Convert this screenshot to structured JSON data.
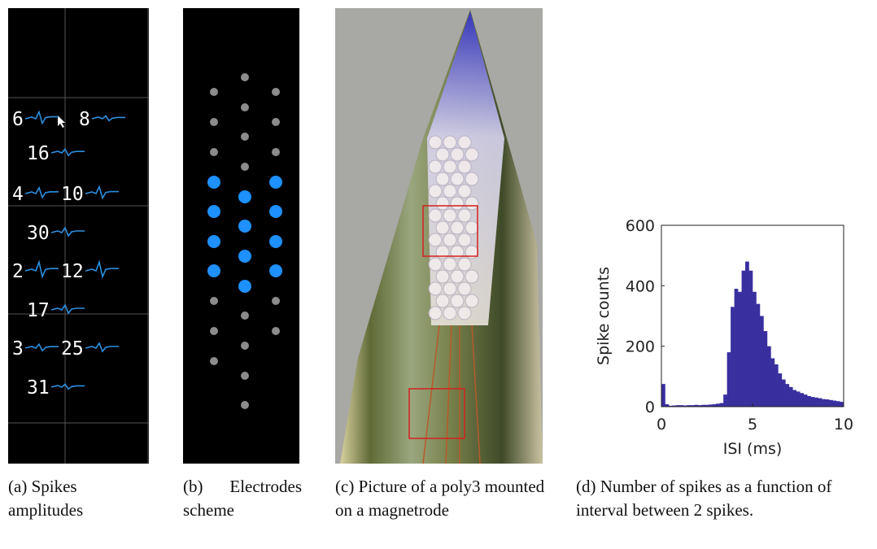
{
  "panel_a": {
    "labels": [
      "6",
      "8",
      "16",
      "4",
      "10",
      "30",
      "2",
      "12",
      "17",
      "3",
      "25",
      "31"
    ]
  },
  "captions": [
    {
      "label": "(a)",
      "text": "Spikes amplitudes"
    },
    {
      "label": "(b)",
      "text": "Electrodes scheme"
    },
    {
      "label": "(c)",
      "text": "Picture of a poly3 mounted on a magnetrode"
    },
    {
      "label": "(d)",
      "text": "Number of spikes as a function of interval between 2 spikes."
    }
  ],
  "chart_data": {
    "type": "histogram",
    "xlabel": "ISI (ms)",
    "ylabel": "Spike counts",
    "color": "#3a2f9f",
    "bins": [
      0,
      0.2,
      0.4,
      0.6,
      0.8,
      1,
      1.2,
      1.4,
      1.6,
      1.8,
      2,
      2.2,
      2.4,
      2.6,
      2.8,
      3,
      3.2,
      3.4,
      3.6,
      3.8,
      4,
      4.2,
      4.4,
      4.6,
      4.8,
      5,
      5.2,
      5.4,
      5.6,
      5.8,
      6,
      6.2,
      6.4,
      6.6,
      6.8,
      7,
      7.2,
      7.4,
      7.6,
      7.8,
      8,
      8.2,
      8.4,
      8.6,
      8.8,
      9,
      9.2,
      9.4,
      9.6,
      9.8,
      10
    ],
    "counts": [
      75,
      8,
      3,
      4,
      5,
      5,
      4,
      5,
      5,
      6,
      5,
      6,
      6,
      7,
      8,
      10,
      12,
      40,
      180,
      330,
      390,
      380,
      450,
      480,
      450,
      380,
      340,
      300,
      250,
      200,
      160,
      140,
      110,
      90,
      75,
      65,
      55,
      50,
      45,
      40,
      35,
      32,
      30,
      28,
      25,
      24,
      22,
      20,
      18,
      16
    ],
    "xlim": [
      0,
      10
    ],
    "ylim": [
      0,
      600
    ],
    "xticks": [
      0,
      5,
      10
    ],
    "yticks": [
      0,
      200,
      400,
      600
    ]
  }
}
